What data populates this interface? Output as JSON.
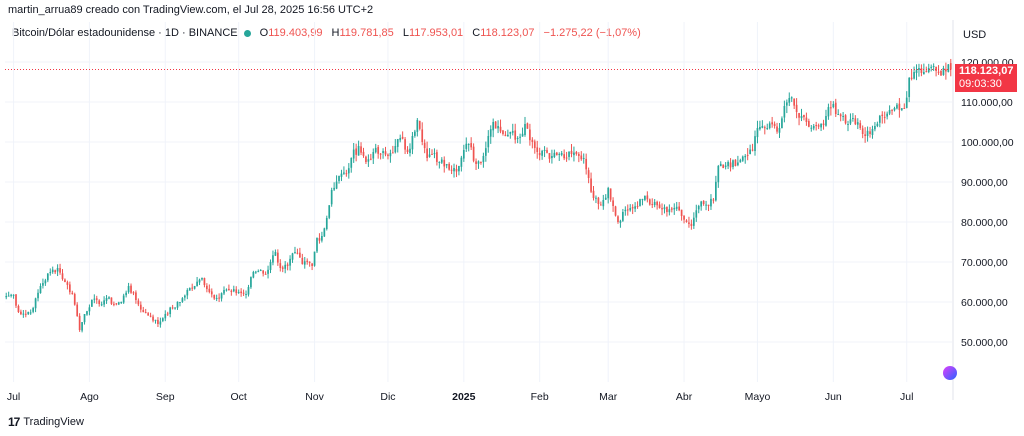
{
  "header": {
    "attribution": "martin_arrua89 creado con TradingView.com, el Jul 28, 2025 16:56 UTC+2"
  },
  "legend": {
    "symbol": "Bitcoin/Dólar estadounidense · 1D · BINANCE",
    "o_label": "O",
    "o_value": "119.403,99",
    "h_label": "H",
    "h_value": "119.781,85",
    "l_label": "L",
    "l_value": "117.953,01",
    "c_label": "C",
    "c_value": "118.123,07",
    "change": "−1.275,22 (−1,07%)"
  },
  "currency": "USD",
  "price_tag": {
    "price": "118.123,07",
    "countdown": "09:03:30"
  },
  "footer": {
    "brand": "TradingView",
    "logo_mark": "17"
  },
  "badge_icon": "tradingview-badge-icon",
  "colors": {
    "up": "#26a69a",
    "down": "#ef5350",
    "last": "#f23645",
    "grid": "#f0f3fa"
  },
  "chart_data": {
    "type": "candlestick",
    "title": "Bitcoin/Dólar estadounidense · 1D · BINANCE",
    "ylim": [
      40000,
      125000
    ],
    "y_ticks": [
      "120.000,00",
      "110.000,00",
      "100.000,00",
      "90.000,00",
      "80.000,00",
      "70.000,00",
      "60.000,00",
      "50.000,00"
    ],
    "y_tick_values": [
      120000,
      110000,
      100000,
      90000,
      80000,
      70000,
      60000,
      50000
    ],
    "x_labels": [
      "Jul",
      "Ago",
      "Sep",
      "Oct",
      "Nov",
      "Dic",
      "2025",
      "Feb",
      "Mar",
      "Abr",
      "Mayo",
      "Jun",
      "Jul"
    ],
    "x_label_index": [
      3,
      34,
      65,
      95,
      126,
      156,
      187,
      218,
      246,
      277,
      307,
      338,
      368
    ],
    "x_label_bold": [
      false,
      false,
      false,
      false,
      false,
      false,
      true,
      false,
      false,
      false,
      false,
      false,
      false
    ],
    "last_close": 118123.07,
    "anchors": [
      [
        0,
        61500
      ],
      [
        3,
        61800
      ],
      [
        5,
        57500
      ],
      [
        8,
        57000
      ],
      [
        11,
        58500
      ],
      [
        14,
        64000
      ],
      [
        18,
        67500
      ],
      [
        21,
        68500
      ],
      [
        24,
        65000
      ],
      [
        27,
        62000
      ],
      [
        29,
        56500
      ],
      [
        30,
        53000
      ],
      [
        32,
        57000
      ],
      [
        35,
        60500
      ],
      [
        38,
        59500
      ],
      [
        41,
        61000
      ],
      [
        44,
        59500
      ],
      [
        47,
        60000
      ],
      [
        50,
        64000
      ],
      [
        53,
        60500
      ],
      [
        56,
        57500
      ],
      [
        59,
        56500
      ],
      [
        62,
        54500
      ],
      [
        65,
        57000
      ],
      [
        68,
        58500
      ],
      [
        71,
        60000
      ],
      [
        74,
        63000
      ],
      [
        77,
        64000
      ],
      [
        80,
        66000
      ],
      [
        83,
        62500
      ],
      [
        86,
        61000
      ],
      [
        89,
        63000
      ],
      [
        92,
        62500
      ],
      [
        95,
        62500
      ],
      [
        98,
        62000
      ],
      [
        101,
        67500
      ],
      [
        104,
        68000
      ],
      [
        106,
        67000
      ],
      [
        108,
        70000
      ],
      [
        110,
        72500
      ],
      [
        112,
        68500
      ],
      [
        115,
        69000
      ],
      [
        118,
        72500
      ],
      [
        121,
        69500
      ],
      [
        123,
        70000
      ],
      [
        125,
        69000
      ],
      [
        127,
        76000
      ],
      [
        129,
        76500
      ],
      [
        131,
        81000
      ],
      [
        133,
        88000
      ],
      [
        136,
        91500
      ],
      [
        139,
        92000
      ],
      [
        141,
        96000
      ],
      [
        144,
        99000
      ],
      [
        147,
        95000
      ],
      [
        150,
        97500
      ],
      [
        153,
        97000
      ],
      [
        156,
        96500
      ],
      [
        159,
        99000
      ],
      [
        161,
        101000
      ],
      [
        164,
        97500
      ],
      [
        166,
        101500
      ],
      [
        168,
        105500
      ],
      [
        170,
        100000
      ],
      [
        172,
        96000
      ],
      [
        174,
        97000
      ],
      [
        177,
        95000
      ],
      [
        180,
        94500
      ],
      [
        183,
        93500
      ],
      [
        185,
        94000
      ],
      [
        187,
        98000
      ],
      [
        189,
        99500
      ],
      [
        192,
        94500
      ],
      [
        195,
        96500
      ],
      [
        197,
        101500
      ],
      [
        199,
        105000
      ],
      [
        201,
        104000
      ],
      [
        203,
        102000
      ],
      [
        206,
        102500
      ],
      [
        209,
        101000
      ],
      [
        212,
        104500
      ],
      [
        215,
        100000
      ],
      [
        217,
        97500
      ],
      [
        220,
        98000
      ],
      [
        223,
        96500
      ],
      [
        226,
        97000
      ],
      [
        229,
        96000
      ],
      [
        231,
        97000
      ],
      [
        234,
        96500
      ],
      [
        236,
        96000
      ],
      [
        238,
        91000
      ],
      [
        240,
        86000
      ],
      [
        242,
        84500
      ],
      [
        244,
        85500
      ],
      [
        246,
        88500
      ],
      [
        248,
        84000
      ],
      [
        250,
        80000
      ],
      [
        252,
        82500
      ],
      [
        255,
        83500
      ],
      [
        258,
        84000
      ],
      [
        261,
        86500
      ],
      [
        264,
        84500
      ],
      [
        267,
        83500
      ],
      [
        270,
        82500
      ],
      [
        273,
        83500
      ],
      [
        276,
        81500
      ],
      [
        278,
        80000
      ],
      [
        280,
        79000
      ],
      [
        283,
        84000
      ],
      [
        285,
        84500
      ],
      [
        287,
        84000
      ],
      [
        289,
        85500
      ],
      [
        291,
        94000
      ],
      [
        293,
        93500
      ],
      [
        295,
        95000
      ],
      [
        298,
        94000
      ],
      [
        300,
        95500
      ],
      [
        302,
        96500
      ],
      [
        305,
        98000
      ],
      [
        307,
        103500
      ],
      [
        309,
        104000
      ],
      [
        311,
        103500
      ],
      [
        314,
        104000
      ],
      [
        316,
        103500
      ],
      [
        318,
        109000
      ],
      [
        320,
        111000
      ],
      [
        323,
        107500
      ],
      [
        325,
        106500
      ],
      [
        327,
        105000
      ],
      [
        330,
        104000
      ],
      [
        333,
        104500
      ],
      [
        335,
        106500
      ],
      [
        338,
        109500
      ],
      [
        340,
        107000
      ],
      [
        342,
        106500
      ],
      [
        344,
        104500
      ],
      [
        346,
        106000
      ],
      [
        349,
        103500
      ],
      [
        351,
        101500
      ],
      [
        353,
        102000
      ],
      [
        355,
        104000
      ],
      [
        358,
        106500
      ],
      [
        361,
        108000
      ],
      [
        363,
        108500
      ],
      [
        365,
        108000
      ],
      [
        367,
        108500
      ],
      [
        369,
        116000
      ],
      [
        371,
        117500
      ],
      [
        373,
        118500
      ],
      [
        375,
        117500
      ],
      [
        377,
        118500
      ],
      [
        379,
        119000
      ],
      [
        381,
        117500
      ],
      [
        383,
        118500
      ],
      [
        385,
        119400
      ],
      [
        386,
        118123
      ]
    ]
  }
}
